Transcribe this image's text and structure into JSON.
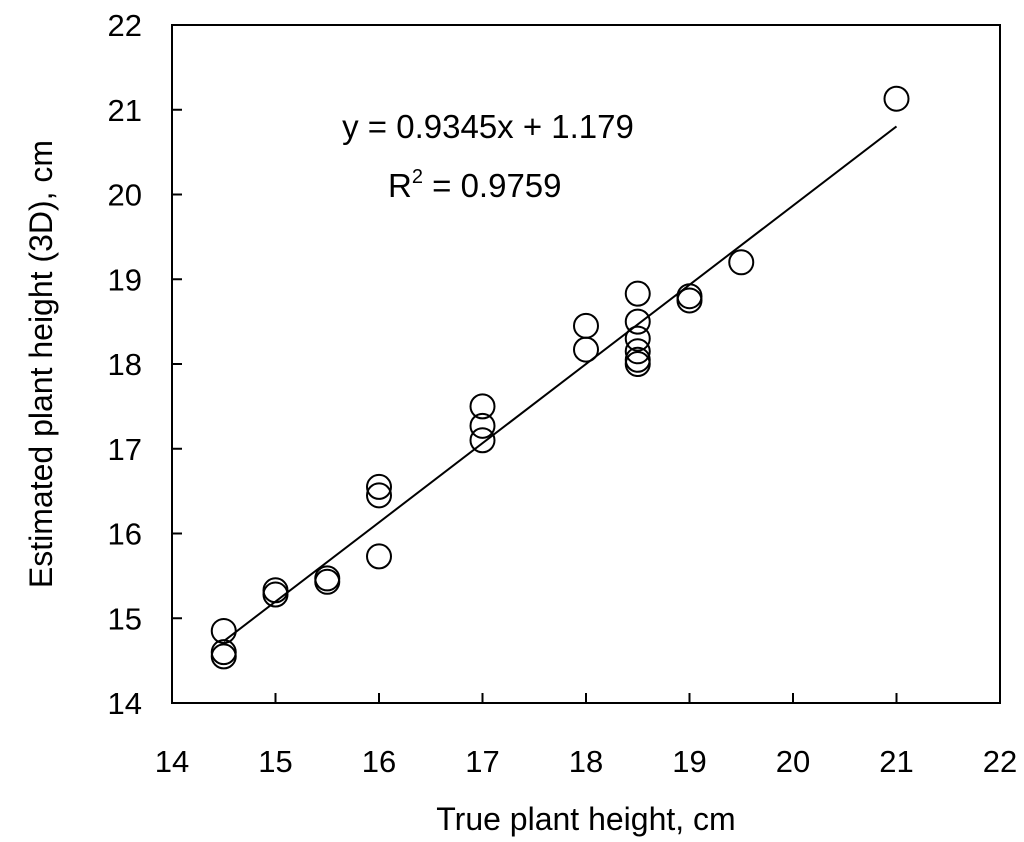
{
  "chart_data": {
    "type": "scatter",
    "xlabel": "True plant height, cm",
    "ylabel": "Estimated plant height (3D), cm",
    "xlim": [
      14,
      22
    ],
    "ylim": [
      14,
      22
    ],
    "xticks": [
      "14",
      "15",
      "16",
      "17",
      "18",
      "19",
      "20",
      "21",
      "22"
    ],
    "yticks": [
      "14",
      "15",
      "16",
      "17",
      "18",
      "19",
      "20",
      "21",
      "22"
    ],
    "grid": false,
    "legend": "none",
    "marker": "open-circle",
    "points": [
      {
        "x": 14.5,
        "y": 14.85
      },
      {
        "x": 14.5,
        "y": 14.6
      },
      {
        "x": 14.5,
        "y": 14.55
      },
      {
        "x": 15.0,
        "y": 15.33
      },
      {
        "x": 15.0,
        "y": 15.28
      },
      {
        "x": 15.5,
        "y": 15.47
      },
      {
        "x": 15.5,
        "y": 15.43
      },
      {
        "x": 16.0,
        "y": 15.73
      },
      {
        "x": 16.0,
        "y": 16.55
      },
      {
        "x": 16.0,
        "y": 16.45
      },
      {
        "x": 17.0,
        "y": 17.5
      },
      {
        "x": 17.0,
        "y": 17.27
      },
      {
        "x": 17.0,
        "y": 17.1
      },
      {
        "x": 18.0,
        "y": 18.45
      },
      {
        "x": 18.0,
        "y": 18.17
      },
      {
        "x": 18.5,
        "y": 18.83
      },
      {
        "x": 18.5,
        "y": 18.5
      },
      {
        "x": 18.5,
        "y": 18.3
      },
      {
        "x": 18.5,
        "y": 18.15
      },
      {
        "x": 18.5,
        "y": 18.05
      },
      {
        "x": 18.5,
        "y": 18.0
      },
      {
        "x": 19.0,
        "y": 18.8
      },
      {
        "x": 19.0,
        "y": 18.75
      },
      {
        "x": 19.5,
        "y": 19.2
      },
      {
        "x": 21.0,
        "y": 21.13
      }
    ],
    "trendline": {
      "slope": 0.9345,
      "intercept": 1.179,
      "x_range": [
        14.5,
        21.0
      ]
    },
    "annotations": {
      "equation": "y = 0.9345x + 1.179",
      "r2_base": "R",
      "r2_sup": "2",
      "r2_value": " = 0.9759"
    }
  }
}
